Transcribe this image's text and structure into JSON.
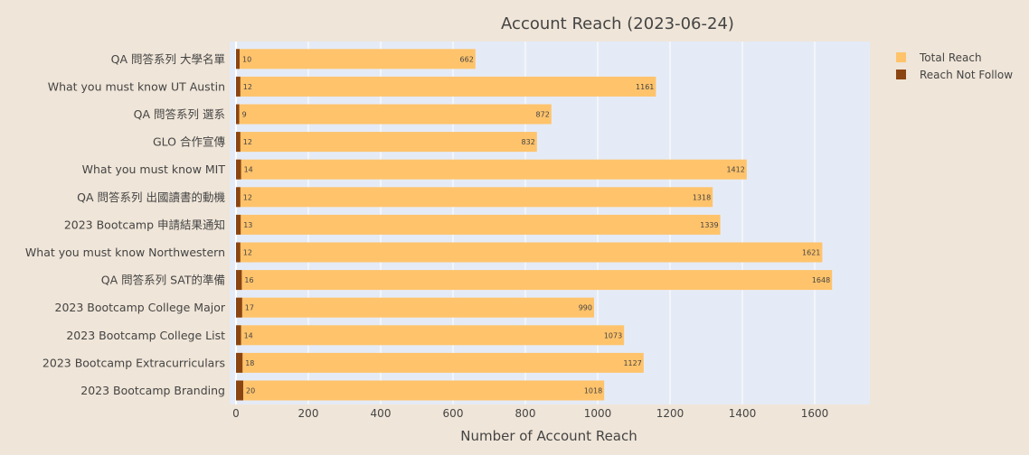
{
  "chart_data": {
    "type": "bar",
    "orientation": "horizontal",
    "barmode": "overlay",
    "title": "Account Reach (2023-06-24)",
    "xlabel": "Number of Account Reach",
    "ylabel": "",
    "xlim": [
      0,
      1750
    ],
    "xticks": [
      0,
      200,
      400,
      600,
      800,
      1000,
      1200,
      1400,
      1600
    ],
    "grid": true,
    "legend_position": "top-right",
    "categories": [
      "QA 問答系列 大學名單",
      "What you must know UT Austin",
      "QA 問答系列 選系",
      "GLO 合作宣傳",
      "What you must know MIT",
      "QA 問答系列 出國讀書的動機",
      "2023 Bootcamp 申請結果通知",
      "What you must know Northwestern",
      "QA 問答系列 SAT的準備",
      "2023 Bootcamp College Major",
      "2023 Bootcamp College List",
      "2023 Bootcamp Extracurriculars",
      "2023 Bootcamp Branding"
    ],
    "series": [
      {
        "name": "Total Reach",
        "color": "#FFC36B",
        "values": [
          662,
          1161,
          872,
          832,
          1412,
          1318,
          1339,
          1621,
          1648,
          990,
          1073,
          1127,
          1018
        ]
      },
      {
        "name": "Reach Not Follow",
        "color": "#8B4513",
        "values": [
          10,
          12,
          9,
          12,
          14,
          12,
          13,
          12,
          16,
          17,
          14,
          18,
          20
        ]
      }
    ],
    "colors": {
      "paper": "#EFE5D8",
      "plot": "#E5EBF6",
      "grid": "#FFFFFF",
      "text": "#444444"
    }
  }
}
